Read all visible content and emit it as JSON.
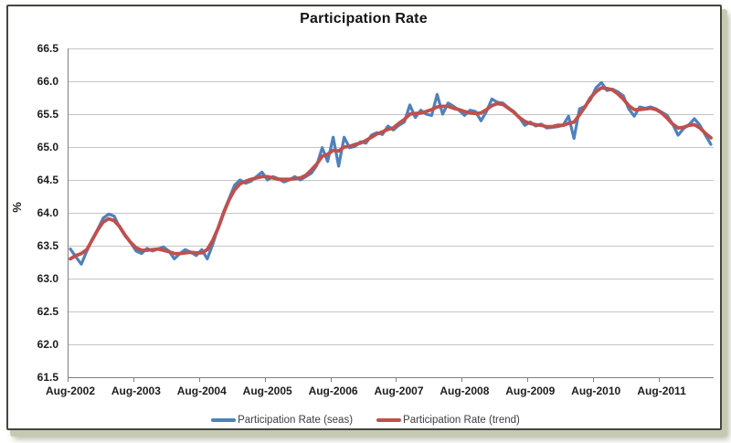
{
  "chart": {
    "title": "Participation Rate",
    "y_axis_title": "%"
  },
  "colors": {
    "seas_line": "#4F81BD",
    "trend_line": "#C0504D",
    "gridline": "#C5C5C5",
    "axis": "#7F7F7F",
    "tick_text": "#1D1D1D",
    "frame_border": "#45453E",
    "frame_shadow": "#C6C9B2",
    "background": "#FFFFFF"
  },
  "chart_data": {
    "type": "line",
    "title": "Participation Rate",
    "xlabel": "",
    "ylabel": "%",
    "ylim": [
      61.5,
      66.5
    ],
    "y_tick_step": 0.5,
    "y_tick_labels": [
      "66.5",
      "66.0",
      "65.5",
      "65.0",
      "64.5",
      "64.0",
      "63.5",
      "63.0",
      "62.5",
      "62.0",
      "61.5"
    ],
    "x_tick_labels": [
      "Aug-2002",
      "Aug-2003",
      "Aug-2004",
      "Aug-2005",
      "Aug-2006",
      "Aug-2007",
      "Aug-2008",
      "Aug-2009",
      "Aug-2010",
      "Aug-2011"
    ],
    "x_tick_interval": 12,
    "x_unit": "month",
    "x_start_label": "Aug-2002",
    "grid": "horizontal",
    "legend_position": "bottom",
    "series": [
      {
        "name": "Participation Rate (seas)",
        "color": "#4F81BD",
        "values": [
          63.45,
          63.33,
          63.22,
          63.42,
          63.6,
          63.75,
          63.92,
          63.98,
          63.95,
          63.78,
          63.65,
          63.55,
          63.42,
          63.38,
          63.46,
          63.42,
          63.45,
          63.48,
          63.42,
          63.3,
          63.38,
          63.44,
          63.4,
          63.35,
          63.44,
          63.3,
          63.52,
          63.78,
          64.02,
          64.22,
          64.42,
          64.5,
          64.45,
          64.48,
          64.55,
          64.62,
          64.5,
          64.55,
          64.52,
          64.47,
          64.5,
          64.55,
          64.5,
          64.55,
          64.6,
          64.72,
          64.99,
          64.78,
          65.15,
          64.71,
          65.15,
          64.99,
          65.01,
          65.08,
          65.06,
          65.18,
          65.22,
          65.19,
          65.32,
          65.26,
          65.33,
          65.38,
          65.64,
          65.45,
          65.56,
          65.5,
          65.48,
          65.8,
          65.5,
          65.67,
          65.62,
          65.56,
          65.48,
          65.56,
          65.54,
          65.4,
          65.54,
          65.73,
          65.68,
          65.67,
          65.6,
          65.54,
          65.45,
          65.33,
          65.38,
          65.32,
          65.35,
          65.29,
          65.3,
          65.31,
          65.33,
          65.47,
          65.13,
          65.58,
          65.62,
          65.72,
          65.9,
          65.98,
          65.86,
          65.88,
          65.84,
          65.78,
          65.58,
          65.47,
          65.61,
          65.59,
          65.61,
          65.58,
          65.53,
          65.48,
          65.35,
          65.18,
          65.28,
          65.34,
          65.43,
          65.33,
          65.18,
          65.04
        ]
      },
      {
        "name": "Participation Rate (trend)",
        "color": "#C0504D",
        "values": [
          63.3,
          63.35,
          63.38,
          63.44,
          63.59,
          63.74,
          63.86,
          63.91,
          63.88,
          63.79,
          63.66,
          63.55,
          63.47,
          63.43,
          63.43,
          63.44,
          63.45,
          63.43,
          63.41,
          63.38,
          63.38,
          63.39,
          63.4,
          63.39,
          63.39,
          63.44,
          63.58,
          63.77,
          64.0,
          64.2,
          64.35,
          64.44,
          64.48,
          64.51,
          64.53,
          64.55,
          64.55,
          64.53,
          64.51,
          64.51,
          64.51,
          64.52,
          64.53,
          64.57,
          64.65,
          64.74,
          64.86,
          64.89,
          64.95,
          64.94,
          65.0,
          65.01,
          65.04,
          65.06,
          65.1,
          65.15,
          65.2,
          65.23,
          65.27,
          65.29,
          65.36,
          65.42,
          65.5,
          65.51,
          65.52,
          65.54,
          65.57,
          65.61,
          65.62,
          65.62,
          65.59,
          65.57,
          65.54,
          65.52,
          65.51,
          65.52,
          65.57,
          65.63,
          65.66,
          65.65,
          65.59,
          65.53,
          65.45,
          65.39,
          65.36,
          65.34,
          65.33,
          65.31,
          65.31,
          65.33,
          65.33,
          65.36,
          65.38,
          65.49,
          65.61,
          65.75,
          65.84,
          65.9,
          65.89,
          65.87,
          65.81,
          65.73,
          65.63,
          65.57,
          65.57,
          65.58,
          65.59,
          65.57,
          65.52,
          65.44,
          65.35,
          65.29,
          65.3,
          65.33,
          65.34,
          65.29,
          65.21,
          65.14
        ]
      }
    ]
  }
}
